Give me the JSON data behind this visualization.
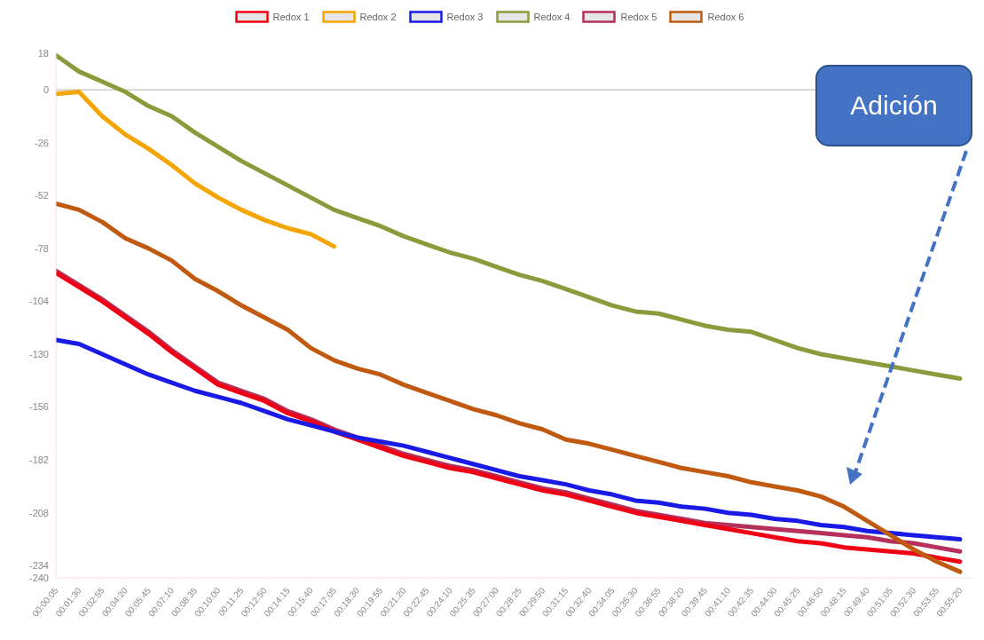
{
  "chart_data": {
    "type": "line",
    "categories": [
      "00:00:05",
      "00:01:30",
      "00:02:55",
      "00:04:20",
      "00:05:45",
      "00:07:10",
      "00:08:35",
      "00:10:00",
      "00:11:25",
      "00:12:50",
      "00:14:15",
      "00:15:40",
      "00:17:05",
      "00:18:30",
      "00:19:55",
      "00:21:20",
      "00:22:45",
      "00:24:10",
      "00:25:35",
      "00:27:00",
      "00:28:25",
      "00:29:50",
      "00:31:15",
      "00:32:40",
      "00:34:05",
      "00:35:30",
      "00:36:55",
      "00:38:20",
      "00:39:45",
      "00:41:10",
      "00:42:35",
      "00:44:00",
      "00:45:25",
      "00:46:50",
      "00:48:15",
      "00:49:40",
      "00:51:05",
      "00:52:30",
      "00:53:55",
      "00:55:20"
    ],
    "series": [
      {
        "name": "Redox 1",
        "color": "#f00014",
        "values": [
          -90,
          -97,
          -104,
          -112,
          -120,
          -129,
          -137,
          -145,
          -149,
          -153,
          -159,
          -163,
          -168,
          -172,
          -176,
          -180,
          -183,
          -186,
          -188,
          -191,
          -194,
          -197,
          -199,
          -202,
          -205,
          -208,
          -210,
          -212,
          -214,
          -216,
          -218,
          -220,
          -222,
          -223,
          -225,
          -226,
          -227,
          -228,
          -230,
          -232
        ]
      },
      {
        "name": "Redox 2",
        "color": "#f5a500",
        "values": [
          -2,
          -1,
          -13,
          -22,
          -29,
          -37,
          -46,
          -53,
          -59,
          -64,
          -68,
          -71,
          -77,
          null,
          null,
          null,
          null,
          null,
          null,
          null,
          null,
          null,
          null,
          null,
          null,
          null,
          null,
          null,
          null,
          null,
          null,
          null,
          null,
          null,
          null,
          null,
          null,
          null,
          null,
          null
        ]
      },
      {
        "name": "Redox 3",
        "color": "#1a1ae6",
        "values": [
          -123,
          -125,
          -130,
          -135,
          -140,
          -144,
          -148,
          -151,
          -154,
          -158,
          -162,
          -165,
          -168,
          -171,
          -173,
          -175,
          -178,
          -181,
          -184,
          -187,
          -190,
          -192,
          -194,
          -197,
          -199,
          -202,
          -203,
          -205,
          -206,
          -208,
          -209,
          -211,
          -212,
          -214,
          -215,
          -217,
          -218,
          -219,
          -220,
          -221
        ]
      },
      {
        "name": "Redox 4",
        "color": "#8c9a3c",
        "values": [
          17,
          9,
          4,
          -1,
          -8,
          -13,
          -21,
          -28,
          -35,
          -41,
          -47,
          -53,
          -59,
          -63,
          -67,
          -72,
          -76,
          -80,
          -83,
          -87,
          -91,
          -94,
          -98,
          -102,
          -106,
          -109,
          -110,
          -113,
          -116,
          -118,
          -119,
          -123,
          -127,
          -130,
          -132,
          -134,
          -136,
          -138,
          -140,
          -142
        ]
      },
      {
        "name": "Redox 5",
        "color": "#b5305a",
        "values": [
          -89,
          -96,
          -103,
          -111,
          -119,
          -128,
          -136,
          -144,
          -148,
          -152,
          -158,
          -162,
          -167,
          -171,
          -175,
          -179,
          -182,
          -185,
          -187,
          -190,
          -193,
          -196,
          -198,
          -201,
          -204,
          -207,
          -209,
          -211,
          -213,
          -214,
          -215,
          -216,
          -217,
          -218,
          -219,
          -220,
          -222,
          -223,
          -225,
          -227
        ]
      },
      {
        "name": "Redox 6",
        "color": "#c05a10",
        "values": [
          -56,
          -59,
          -65,
          -73,
          -78,
          -84,
          -93,
          -99,
          -106,
          -112,
          -118,
          -127,
          -133,
          -137,
          -140,
          -145,
          -149,
          -153,
          -157,
          -160,
          -164,
          -167,
          -172,
          -174,
          -177,
          -180,
          -183,
          -186,
          -188,
          -190,
          -193,
          -195,
          -197,
          -200,
          -205,
          -212,
          -219,
          -226,
          -232,
          -237
        ]
      }
    ],
    "ylim": [
      -240,
      18
    ],
    "yticks": [
      18,
      0,
      -26,
      -52,
      -78,
      -104,
      -130,
      -156,
      -182,
      -208,
      -234,
      -240
    ],
    "grid": false,
    "legend": "top",
    "marker": "none",
    "line_style": "solid",
    "ref_lines": [
      {
        "axis": "y",
        "value": 0,
        "color": "#cccccc"
      }
    ],
    "annotations": [
      "Adición"
    ]
  }
}
